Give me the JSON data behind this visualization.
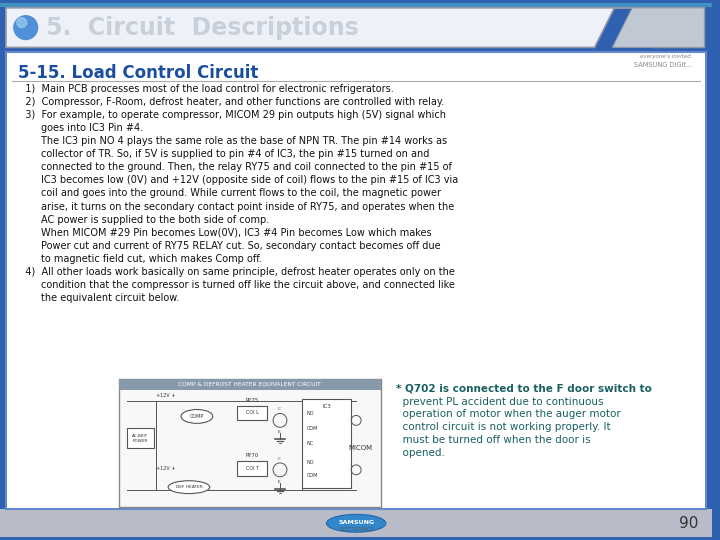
{
  "header_title": "5.  Circuit  Descriptions",
  "section_title": "5-15. Load Control Circuit",
  "body_lines": [
    "   1)  Main PCB processes most of the load control for electronic refrigerators.",
    "   2)  Compressor, F-Room, defrost heater, and other functions are controlled with relay.",
    "   3)  For example, to operate compressor, MICOM 29 pin outputs high (5V) signal which",
    "        goes into IC3 Pin #4.",
    "        The IC3 pin NO 4 plays the same role as the base of NPN TR. The pin #14 works as",
    "        collector of TR. So, if 5V is supplied to pin #4 of IC3, the pin #15 turned on and",
    "        connected to the ground. Then, the relay RY75 and coil connected to the pin #15 of",
    "        IC3 becomes low (0V) and +12V (opposite side of coil) flows to the pin #15 of IC3 via",
    "        coil and goes into the ground. While current flows to the coil, the magnetic power",
    "        arise, it turns on the secondary contact point inside of RY75, and operates when the",
    "        AC power is supplied to the both side of comp.",
    "        When MICOM #29 Pin becomes Low(0V), IC3 #4 Pin becomes Low which makes",
    "        Power cut and current of RY75 RELAY cut. So, secondary contact becomes off due",
    "        to magnetic field cut, which makes Comp off.",
    "   4)  All other loads work basically on same principle, defrost heater operates only on the",
    "        condition that the compressor is turned off like the circuit above, and connected like",
    "        the equivalent circuit below."
  ],
  "note_lines": [
    "* Q702 is connected to the F door switch to",
    "  prevent PL accident due to continuous",
    "  operation of motor when the auger motor",
    "  control circuit is not working properly. It",
    "  must be turned off when the door is",
    "  opened."
  ],
  "page_number": "90",
  "header_bg": "#3060b0",
  "header_text_color": "#c8d0dc",
  "header_box_bg": "#eef2f8",
  "header_box_border": "#9098a8",
  "body_bg": "#ffffff",
  "body_border_color": "#6688cc",
  "section_title_color": "#1a4fa0",
  "body_text_color": "#111111",
  "note_text_color": "#1a6060",
  "bottom_bar_color": "#b8bcc8",
  "circuit_label": "COMP & DEFROST HEATER EQUIVALENT CIRCUIT"
}
